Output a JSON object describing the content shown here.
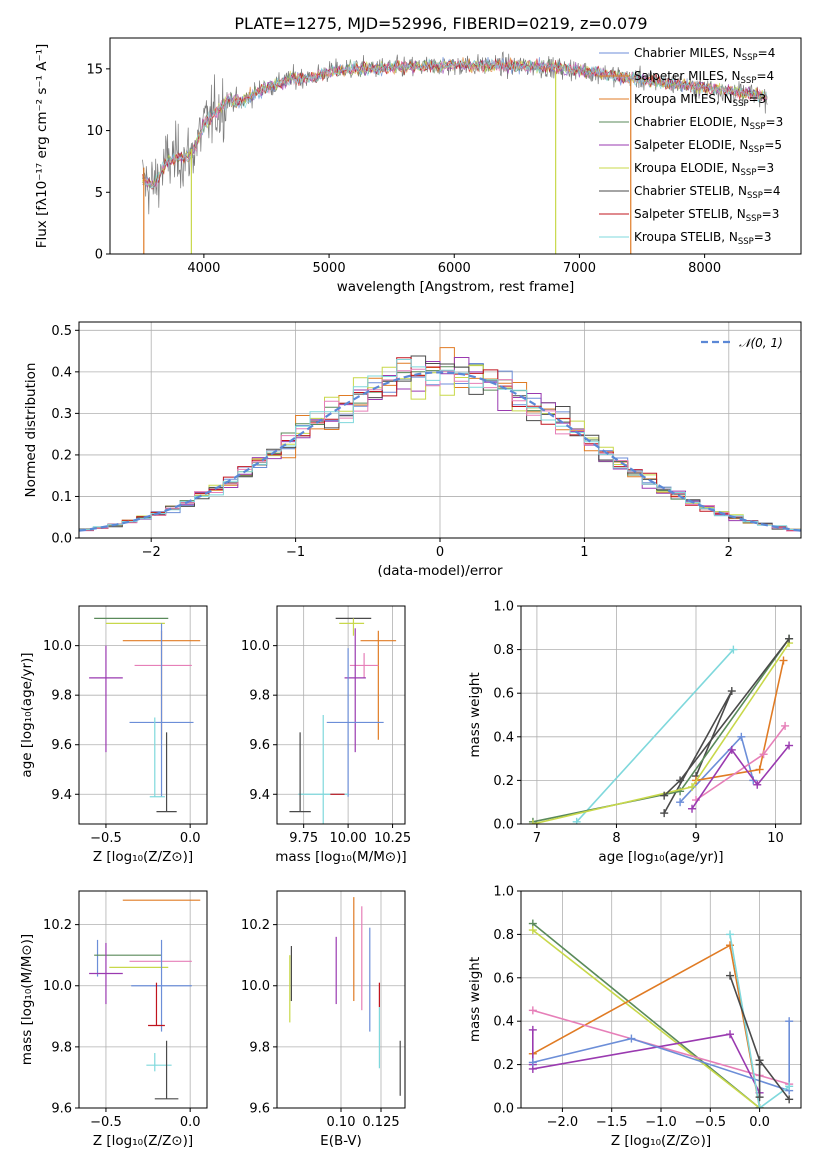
{
  "figure_title": "PLATE=1275, MJD=52996, FIBERID=0219, z=0.079",
  "colors": {
    "blue": "#6c8ed8",
    "orange": "#e07b24",
    "green": "#5a8a5a",
    "purple": "#9a3ab0",
    "yellow": "#c8d84a",
    "darkgray": "#4a4a4a",
    "red": "#c0141e",
    "pink": "#e67fb8",
    "cyan": "#7fd8dc",
    "dashed": "#5b88d6"
  },
  "chart_data": [
    {
      "id": "spectrum",
      "type": "line",
      "xlabel": "wavelength [Angstrom, rest frame]",
      "ylabel": "Flux [fλ10⁻¹⁷ erg cm⁻² s⁻¹ A⁻¹]",
      "xlim": [
        3250,
        8770
      ],
      "ylim": [
        0,
        17.5
      ],
      "xticks": [
        4000,
        5000,
        6000,
        7000,
        8000
      ],
      "yticks": [
        0,
        5,
        10,
        15
      ],
      "legend": "top-right",
      "legend_entries": [
        {
          "label": "Chabrier MILES, N_SSP=4",
          "text": "Chabrier MILES, N",
          "sub": "SSP",
          "tail": "=4",
          "color": "#6c8ed8"
        },
        {
          "label": "Salpeter MILES, N_SSP=4",
          "text": "Salpeter MILES, N",
          "sub": "SSP",
          "tail": "=4",
          "color": "#e07b24"
        },
        {
          "label": "Kroupa MILES, N_SSP=3",
          "text": "Kroupa MILES, N",
          "sub": "SSP",
          "tail": "=3",
          "color": "#e07b24"
        },
        {
          "label": "Chabrier ELODIE, N_SSP=3",
          "text": "Chabrier ELODIE, N",
          "sub": "SSP",
          "tail": "=3",
          "color": "#5a8a5a"
        },
        {
          "label": "Salpeter ELODIE, N_SSP=5",
          "text": "Salpeter ELODIE, N",
          "sub": "SSP",
          "tail": "=5",
          "color": "#9a3ab0"
        },
        {
          "label": "Kroupa ELODIE, N_SSP=3",
          "text": "Kroupa ELODIE, N",
          "sub": "SSP",
          "tail": "=3",
          "color": "#c8d84a"
        },
        {
          "label": "Chabrier STELIB, N_SSP=4",
          "text": "Chabrier STELIB, N",
          "sub": "SSP",
          "tail": "=4",
          "color": "#4a4a4a"
        },
        {
          "label": "Salpeter STELIB, N_SSP=3",
          "text": "Salpeter STELIB, N",
          "sub": "SSP",
          "tail": "=3",
          "color": "#c0141e"
        },
        {
          "label": "Kroupa STELIB, N_SSP=3",
          "text": "Kroupa STELIB, N",
          "sub": "SSP",
          "tail": "=3",
          "color": "#7fd8dc"
        }
      ],
      "continuum": [
        [
          3500,
          6.0
        ],
        [
          3600,
          5.5
        ],
        [
          3700,
          7.5
        ],
        [
          3800,
          7.8
        ],
        [
          3900,
          8.0
        ],
        [
          4000,
          10.5
        ],
        [
          4100,
          11.5
        ],
        [
          4200,
          12.5
        ],
        [
          4300,
          12.3
        ],
        [
          4400,
          13.0
        ],
        [
          4500,
          13.5
        ],
        [
          4700,
          14.2
        ],
        [
          4900,
          14.4
        ],
        [
          5000,
          14.8
        ],
        [
          5200,
          15.0
        ],
        [
          5500,
          15.1
        ],
        [
          5800,
          15.2
        ],
        [
          6000,
          15.3
        ],
        [
          6300,
          15.3
        ],
        [
          6600,
          15.2
        ],
        [
          6800,
          15.1
        ],
        [
          7000,
          14.9
        ],
        [
          7200,
          14.6
        ],
        [
          7400,
          14.3
        ],
        [
          7600,
          14.0
        ],
        [
          7800,
          13.7
        ],
        [
          8000,
          13.5
        ],
        [
          8200,
          13.2
        ],
        [
          8400,
          12.9
        ],
        [
          8500,
          12.7
        ]
      ],
      "features": {
        "model_break_blue": [
          3520,
          0,
          7.0
        ],
        "model_break_yellow": [
          3900,
          0,
          8.5
        ],
        "model_drop_yellow_2": [
          6810,
          0,
          14.8
        ],
        "model_drop_orange": [
          7410,
          0,
          14.2
        ]
      }
    },
    {
      "id": "residuals",
      "type": "histogram",
      "xlabel": "(data-model)/error",
      "ylabel": "Normed distribution",
      "xlim": [
        -2.5,
        2.5
      ],
      "ylim": [
        0,
        0.52
      ],
      "xticks": [
        -2,
        -1,
        0,
        1,
        2
      ],
      "yticks": [
        0.0,
        0.1,
        0.2,
        0.3,
        0.4,
        0.5
      ],
      "grid": true,
      "legend": "top-right",
      "legend_label": "𝒩(0, 1)",
      "reference": "normal(0,1)",
      "bin_width": 0.1
    },
    {
      "id": "age_vs_Z",
      "type": "errorbar",
      "xlabel": "Z [log₁₀(Z/Z⊙)]",
      "ylabel": "age  [log₁₀(age/yr)]",
      "xlim": [
        -0.66,
        0.1
      ],
      "ylim": [
        9.28,
        10.16
      ],
      "xticks": [
        -0.5,
        0.0
      ],
      "yticks": [
        9.4,
        9.6,
        9.8,
        10.0
      ],
      "points": [
        {
          "x": -0.35,
          "y": 10.11,
          "xerr": [
            0.22,
            0.22
          ],
          "yerr": [
            0,
            0
          ],
          "color": "#5a8a5a"
        },
        {
          "x": -0.3,
          "y": 10.09,
          "xerr": [
            0.2,
            0.15
          ],
          "yerr": [
            0,
            0
          ],
          "color": "#c8d84a"
        },
        {
          "x": -0.17,
          "y": 10.02,
          "xerr": [
            0.23,
            0.23
          ],
          "yerr": [
            0.4,
            0.04
          ],
          "color": "#e07b24"
        },
        {
          "x": -0.16,
          "y": 9.92,
          "xerr": [
            0.17,
            0.17
          ],
          "yerr": [
            0,
            0
          ],
          "color": "#e67fb8"
        },
        {
          "x": -0.5,
          "y": 9.87,
          "xerr": [
            0.1,
            0.1
          ],
          "yerr": [
            0.3,
            0.13
          ],
          "color": "#9a3ab0"
        },
        {
          "x": -0.17,
          "y": 9.69,
          "xerr": [
            0.19,
            0.19
          ],
          "yerr": [
            0.3,
            0.4
          ],
          "color": "#6c8ed8"
        },
        {
          "x": -0.21,
          "y": 9.39,
          "xerr": [
            0.03,
            0.06
          ],
          "yerr": [
            0,
            0.32
          ],
          "color": "#7fd8dc"
        },
        {
          "x": -0.14,
          "y": 9.33,
          "xerr": [
            0.06,
            0.06
          ],
          "yerr": [
            0,
            0.32
          ],
          "color": "#4a4a4a"
        }
      ]
    },
    {
      "id": "age_vs_mass",
      "type": "errorbar",
      "xlabel": "mass [log₁₀(M/M⊙)]",
      "ylabel": "",
      "xlim": [
        9.6,
        10.32
      ],
      "ylim": [
        9.28,
        10.16
      ],
      "xticks": [
        9.75,
        10.0,
        10.25
      ],
      "yticks": [
        9.4,
        9.6,
        9.8,
        10.0
      ],
      "points": [
        {
          "x": 10.03,
          "y": 10.11,
          "xerr": [
            0.1,
            0.1
          ],
          "yerr": [
            0,
            0
          ],
          "color": "#4a4a4a"
        },
        {
          "x": 10.03,
          "y": 10.09,
          "xerr": [
            0.08,
            0.06
          ],
          "yerr": [
            0.05,
            0.02
          ],
          "color": "#c8d84a"
        },
        {
          "x": 10.17,
          "y": 10.02,
          "xerr": [
            0.1,
            0.1
          ],
          "yerr": [
            0.4,
            0.04
          ],
          "color": "#e07b24"
        },
        {
          "x": 10.09,
          "y": 9.92,
          "xerr": [
            0.08,
            0.08
          ],
          "yerr": [
            0.05,
            0.05
          ],
          "color": "#e67fb8"
        },
        {
          "x": 10.04,
          "y": 9.87,
          "xerr": [
            0.06,
            0.06
          ],
          "yerr": [
            0.3,
            0.2
          ],
          "color": "#9a3ab0"
        },
        {
          "x": 10.0,
          "y": 9.69,
          "xerr": [
            0.12,
            0.2
          ],
          "yerr": [
            0.3,
            0.3
          ],
          "color": "#6c8ed8"
        },
        {
          "x": 9.86,
          "y": 9.4,
          "xerr": [
            0.14,
            0.14
          ],
          "yerr": [
            0.12,
            0.32
          ],
          "color": "#7fd8dc"
        },
        {
          "x": 9.73,
          "y": 9.33,
          "xerr": [
            0.06,
            0.06
          ],
          "yerr": [
            0,
            0.32
          ],
          "color": "#4a4a4a"
        },
        {
          "x": 9.95,
          "y": 9.4,
          "xerr": [
            0.05,
            0.03
          ],
          "yerr": [
            0,
            0
          ],
          "color": "#c0141e"
        }
      ]
    },
    {
      "id": "massweight_vs_age",
      "type": "line",
      "xlabel": "age  [log₁₀(age/yr)]",
      "ylabel": "mass weight",
      "xlim": [
        6.8,
        10.32
      ],
      "ylim": [
        0,
        1.0
      ],
      "xticks": [
        7,
        8,
        9,
        10
      ],
      "yticks": [
        0.0,
        0.2,
        0.4,
        0.6,
        0.8,
        1.0
      ],
      "grid": true,
      "series": [
        {
          "color": "#6c8ed8",
          "x": [
            8.8,
            9.57,
            9.72
          ],
          "y": [
            0.1,
            0.4,
            0.2
          ]
        },
        {
          "color": "#7fd8dc",
          "x": [
            7.5,
            9.47
          ],
          "y": [
            0.01,
            0.8
          ]
        },
        {
          "color": "#4a4a4a",
          "x": [
            8.6,
            9.45,
            9.0
          ],
          "y": [
            0.05,
            0.61,
            0.22
          ]
        },
        {
          "color": "#e07b24",
          "x": [
            9.0,
            9.8,
            10.1
          ],
          "y": [
            0.2,
            0.25,
            0.75
          ]
        },
        {
          "color": "#e67fb8",
          "x": [
            9.0,
            9.85,
            10.12
          ],
          "y": [
            0.11,
            0.32,
            0.45
          ]
        },
        {
          "color": "#9a3ab0",
          "x": [
            8.95,
            9.45,
            9.77,
            10.17
          ],
          "y": [
            0.07,
            0.34,
            0.18,
            0.36
          ]
        },
        {
          "color": "#5a8a5a",
          "x": [
            6.95,
            8.8,
            10.17
          ],
          "y": [
            0.01,
            0.15,
            0.85
          ]
        },
        {
          "color": "#c8d84a",
          "x": [
            6.95,
            8.95,
            10.17
          ],
          "y": [
            0.0,
            0.17,
            0.83
          ]
        },
        {
          "color": "#4a4a4a",
          "x": [
            8.6,
            8.8,
            10.17
          ],
          "y": [
            0.13,
            0.2,
            0.85
          ]
        }
      ]
    },
    {
      "id": "mass_vs_Z",
      "type": "errorbar",
      "xlabel": "Z [log₁₀(Z/Z⊙)]",
      "ylabel": "mass [log₁₀(M/M⊙)]",
      "xlim": [
        -0.66,
        0.1
      ],
      "ylim": [
        9.6,
        10.31
      ],
      "xticks": [
        -0.5,
        0.0
      ],
      "yticks": [
        9.6,
        9.8,
        10.0,
        10.2
      ],
      "points": [
        {
          "x": -0.17,
          "y": 10.28,
          "xerr": [
            0.23,
            0.23
          ],
          "yerr": [
            0,
            0
          ],
          "color": "#e07b24"
        },
        {
          "x": -0.55,
          "y": 10.09,
          "xerr": [
            0.0,
            0.0
          ],
          "yerr": [
            0.06,
            0.06
          ],
          "color": "#6c8ed8"
        },
        {
          "x": -0.37,
          "y": 10.1,
          "xerr": [
            0.2,
            0.2
          ],
          "yerr": [
            0,
            0
          ],
          "color": "#5a8a5a"
        },
        {
          "x": -0.28,
          "y": 10.06,
          "xerr": [
            0.2,
            0.15
          ],
          "yerr": [
            0,
            0
          ],
          "color": "#c8d84a"
        },
        {
          "x": -0.16,
          "y": 10.08,
          "xerr": [
            0.2,
            0.17
          ],
          "yerr": [
            0,
            0
          ],
          "color": "#e67fb8"
        },
        {
          "x": -0.5,
          "y": 10.04,
          "xerr": [
            0.1,
            0.1
          ],
          "yerr": [
            0.1,
            0.1
          ],
          "color": "#9a3ab0"
        },
        {
          "x": -0.17,
          "y": 10.0,
          "xerr": [
            0.18,
            0.18
          ],
          "yerr": [
            0.15,
            0.15
          ],
          "color": "#6c8ed8"
        },
        {
          "x": -0.2,
          "y": 9.87,
          "xerr": [
            0.05,
            0.05
          ],
          "yerr": [
            0,
            0.14
          ],
          "color": "#c0141e"
        },
        {
          "x": -0.21,
          "y": 9.74,
          "xerr": [
            0.05,
            0.1
          ],
          "yerr": [
            0.02,
            0.04
          ],
          "color": "#7fd8dc"
        },
        {
          "x": -0.14,
          "y": 9.63,
          "xerr": [
            0.07,
            0.07
          ],
          "yerr": [
            0,
            0.19
          ],
          "color": "#4a4a4a"
        }
      ]
    },
    {
      "id": "mass_vs_ebv",
      "type": "errorbar",
      "xlabel": "E(B-V)",
      "ylabel": "",
      "xlim": [
        0.06,
        0.14
      ],
      "ylim": [
        9.6,
        10.31
      ],
      "xticks": [
        0.1,
        0.125
      ],
      "yticks": [
        9.6,
        9.8,
        10.0,
        10.2
      ],
      "points": [
        {
          "x": 0.069,
          "y": 10.04,
          "xerr": [
            0,
            0
          ],
          "yerr": [
            0.09,
            0.09
          ],
          "color": "#4a4a4a"
        },
        {
          "x": 0.068,
          "y": 9.99,
          "xerr": [
            0,
            0
          ],
          "yerr": [
            0.11,
            0.11
          ],
          "color": "#c8d84a"
        },
        {
          "x": 0.097,
          "y": 10.05,
          "xerr": [
            0,
            0
          ],
          "yerr": [
            0.11,
            0.11
          ],
          "color": "#9a3ab0"
        },
        {
          "x": 0.108,
          "y": 10.12,
          "xerr": [
            0,
            0
          ],
          "yerr": [
            0.17,
            0.17
          ],
          "color": "#e07b24"
        },
        {
          "x": 0.113,
          "y": 10.09,
          "xerr": [
            0,
            0
          ],
          "yerr": [
            0.17,
            0.17
          ],
          "color": "#e67fb8"
        },
        {
          "x": 0.118,
          "y": 10.02,
          "xerr": [
            0,
            0
          ],
          "yerr": [
            0.17,
            0.17
          ],
          "color": "#6c8ed8"
        },
        {
          "x": 0.124,
          "y": 9.97,
          "xerr": [
            0,
            0
          ],
          "yerr": [
            0.04,
            0.04
          ],
          "color": "#c0141e"
        },
        {
          "x": 0.124,
          "y": 9.83,
          "xerr": [
            0,
            0
          ],
          "yerr": [
            0.1,
            0.1
          ],
          "color": "#7fd8dc"
        },
        {
          "x": 0.137,
          "y": 9.73,
          "xerr": [
            0,
            0
          ],
          "yerr": [
            0.09,
            0.09
          ],
          "color": "#4a4a4a"
        }
      ]
    },
    {
      "id": "massweight_vs_Z",
      "type": "line",
      "xlabel": "Z [log₁₀(Z/Z⊙)]",
      "ylabel": "mass weight",
      "xlim": [
        -2.42,
        0.42
      ],
      "ylim": [
        0,
        1.0
      ],
      "xticks": [
        -2.0,
        -1.5,
        -1.0,
        -0.5,
        0.0
      ],
      "yticks": [
        0.0,
        0.2,
        0.4,
        0.6,
        0.8,
        1.0
      ],
      "grid": true,
      "series": [
        {
          "color": "#5a8a5a",
          "x": [
            -2.3,
            0.0
          ],
          "y": [
            0.85,
            0.0
          ]
        },
        {
          "color": "#c8d84a",
          "x": [
            -2.3,
            0.0
          ],
          "y": [
            0.82,
            0.0
          ]
        },
        {
          "color": "#e07b24",
          "x": [
            -2.3,
            -0.3,
            0.0
          ],
          "y": [
            0.25,
            0.75,
            0.0
          ]
        },
        {
          "color": "#e67fb8",
          "x": [
            -2.3,
            0.0,
            0.3
          ],
          "y": [
            0.45,
            0.15,
            0.11
          ]
        },
        {
          "color": "#9a3ab0",
          "x": [
            -2.3,
            -0.3,
            0.0
          ],
          "y": [
            0.18,
            0.34,
            0.07
          ]
        },
        {
          "color": "#9a3ab0",
          "x": [
            -2.3,
            -2.3
          ],
          "y": [
            0.36,
            0.2
          ]
        },
        {
          "color": "#6c8ed8",
          "x": [
            -2.3,
            -1.3,
            0.3,
            0.3
          ],
          "y": [
            0.21,
            0.32,
            0.08,
            0.4
          ]
        },
        {
          "color": "#7fd8dc",
          "x": [
            -0.3,
            0.0,
            0.3
          ],
          "y": [
            0.8,
            0.0,
            0.1
          ]
        },
        {
          "color": "#4a4a4a",
          "x": [
            -0.3,
            0.0,
            0.3
          ],
          "y": [
            0.61,
            0.22,
            0.04
          ]
        },
        {
          "color": "#4a4a4a",
          "x": [
            0.0,
            0.0
          ],
          "y": [
            0.2,
            0.05
          ]
        }
      ]
    }
  ]
}
